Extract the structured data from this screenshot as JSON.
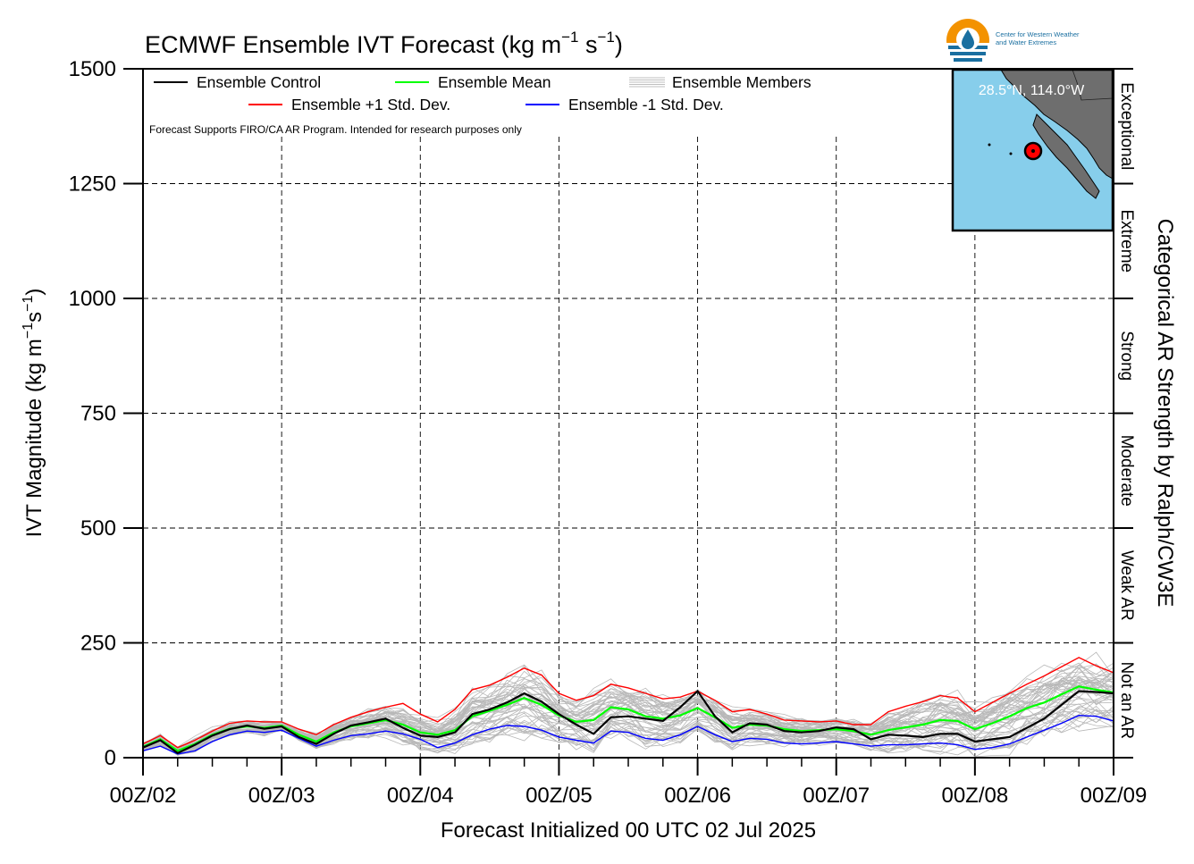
{
  "chart_data": {
    "type": "line",
    "title_prefix": "ECMWF Ensemble IVT Forecast (kg m",
    "title_exp1": "−1",
    "title_mid": " s",
    "title_exp2": "−1",
    "title_suffix": ")",
    "ylabel_prefix": "IVT Magnitude (kg m",
    "ylabel_exp1": "−1",
    "ylabel_mid": "s",
    "ylabel_exp2": "−1",
    "ylabel_suffix": ")",
    "xlabel": "Forecast Initialized 00 UTC 02 Jul 2025",
    "right_axis_label": "Categorical AR Strength by Ralph/CW3E",
    "note": "Forecast Supports FIRO/CA AR Program. Intended for research purposes only",
    "ylim": [
      0,
      1500
    ],
    "yticks": [
      0,
      250,
      500,
      750,
      1000,
      1250,
      1500
    ],
    "xlim": [
      0,
      168
    ],
    "x_unit": "hours after 00Z/02",
    "xtick_values": [
      0,
      24,
      48,
      72,
      96,
      120,
      144,
      168
    ],
    "xtick_labels": [
      "00Z/02",
      "00Z/03",
      "00Z/04",
      "00Z/05",
      "00Z/06",
      "00Z/07",
      "00Z/08",
      "00Z/09"
    ],
    "minor_xtick_step": 6,
    "grid": true,
    "categories": [
      {
        "label": "Not an AR",
        "range": [
          0,
          250
        ]
      },
      {
        "label": "Weak AR",
        "range": [
          250,
          500
        ]
      },
      {
        "label": "Moderate",
        "range": [
          500,
          750
        ]
      },
      {
        "label": "Strong",
        "range": [
          750,
          1000
        ]
      },
      {
        "label": "Extreme",
        "range": [
          1000,
          1250
        ]
      },
      {
        "label": "Exceptional",
        "range": [
          1250,
          1500
        ]
      }
    ],
    "legend": {
      "placement": "top-left",
      "entries": [
        {
          "label": "Ensemble Control",
          "color": "#000000"
        },
        {
          "label": "Ensemble Mean",
          "color": "#00ff00"
        },
        {
          "label": "Ensemble Members",
          "color": "#aaaaaa"
        },
        {
          "label": "Ensemble +1 Std. Dev.",
          "color": "#ff0000"
        },
        {
          "label": "Ensemble -1 Std. Dev.",
          "color": "#0000ff"
        }
      ]
    },
    "x": [
      0,
      3,
      6,
      9,
      12,
      15,
      18,
      21,
      24,
      27,
      30,
      33,
      36,
      39,
      42,
      45,
      48,
      51,
      54,
      57,
      60,
      63,
      66,
      69,
      72,
      75,
      78,
      81,
      84,
      87,
      90,
      93,
      96,
      99,
      102,
      105,
      108,
      111,
      114,
      117,
      120,
      123,
      126,
      129,
      132,
      135,
      138,
      141,
      144,
      147,
      150,
      153,
      156,
      159,
      162,
      165,
      168
    ],
    "series": [
      {
        "name": "Ensemble Control",
        "color": "#000000",
        "values": [
          22,
          38,
          10,
          28,
          48,
          62,
          70,
          63,
          68,
          45,
          30,
          52,
          70,
          77,
          85,
          65,
          48,
          45,
          55,
          95,
          105,
          120,
          140,
          122,
          95,
          72,
          52,
          88,
          90,
          85,
          80,
          110,
          145,
          90,
          55,
          75,
          72,
          58,
          55,
          58,
          66,
          62,
          40,
          50,
          48,
          45,
          52,
          52,
          35,
          40,
          45,
          65,
          85,
          115,
          145,
          143,
          140
        ]
      },
      {
        "name": "Ensemble Mean",
        "color": "#00ff00",
        "values": [
          24,
          40,
          15,
          30,
          50,
          63,
          68,
          65,
          70,
          50,
          35,
          55,
          68,
          75,
          82,
          72,
          55,
          50,
          60,
          90,
          102,
          115,
          130,
          115,
          92,
          78,
          82,
          110,
          105,
          90,
          85,
          92,
          108,
          88,
          65,
          72,
          70,
          62,
          58,
          60,
          62,
          58,
          50,
          60,
          66,
          72,
          82,
          80,
          62,
          75,
          90,
          108,
          120,
          138,
          155,
          148,
          142
        ]
      },
      {
        "name": "Ensemble +1 Std. Dev.",
        "color": "#ff0000",
        "values": [
          30,
          48,
          22,
          38,
          58,
          75,
          80,
          78,
          78,
          62,
          50,
          72,
          88,
          100,
          110,
          118,
          95,
          78,
          105,
          148,
          158,
          175,
          195,
          180,
          140,
          125,
          135,
          160,
          152,
          140,
          128,
          132,
          145,
          125,
          100,
          105,
          95,
          82,
          80,
          78,
          80,
          72,
          72,
          100,
          112,
          122,
          135,
          130,
          100,
          120,
          140,
          160,
          178,
          198,
          218,
          200,
          185
        ]
      },
      {
        "name": "Ensemble -1 Std. Dev.",
        "color": "#0000ff",
        "values": [
          15,
          25,
          8,
          15,
          35,
          50,
          58,
          55,
          60,
          42,
          25,
          38,
          48,
          52,
          58,
          52,
          40,
          22,
          32,
          50,
          62,
          70,
          68,
          60,
          45,
          38,
          32,
          58,
          55,
          42,
          38,
          50,
          68,
          50,
          35,
          42,
          40,
          32,
          30,
          32,
          35,
          30,
          25,
          28,
          28,
          30,
          32,
          28,
          18,
          22,
          30,
          45,
          60,
          75,
          92,
          90,
          80
        ]
      }
    ]
  },
  "inset_map": {
    "location": "28.5°N, 114.0°W",
    "ocean_color": "#87ceeb",
    "land_color": "#6e6e6e",
    "marker_color": "#ff0000"
  },
  "logo": {
    "line1": "Center for Western Weather",
    "line2": "and Water Extremes"
  }
}
